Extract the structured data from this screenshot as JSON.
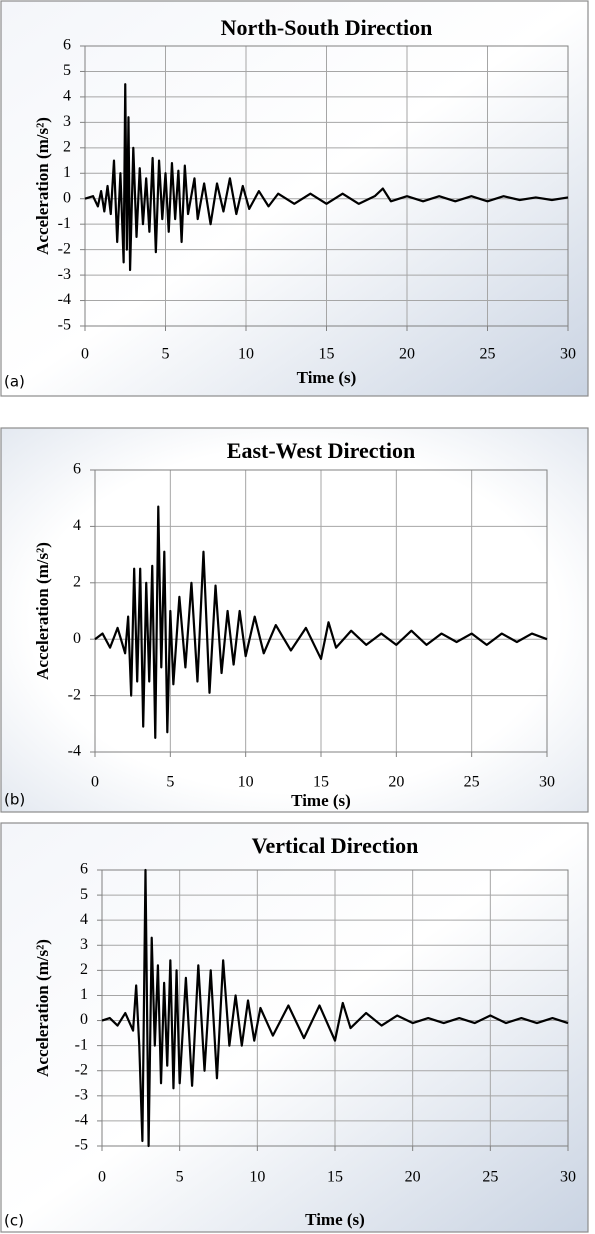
{
  "chart_data": [
    {
      "type": "line",
      "title": "North-South Direction",
      "panel_label": "(a)",
      "xlabel": "Time (s)",
      "ylabel": "Acceleration (m/s²)",
      "color": "#000000",
      "grid": true,
      "xlim": [
        0,
        30
      ],
      "xticks": [
        0,
        5,
        10,
        15,
        20,
        25,
        30
      ],
      "ylim": [
        -5,
        6
      ],
      "yticks": [
        -5,
        -4,
        -3,
        -2,
        -1,
        0,
        1,
        2,
        3,
        4,
        5,
        6
      ],
      "x": [
        0,
        0.5,
        0.8,
        1.0,
        1.2,
        1.4,
        1.6,
        1.8,
        2.0,
        2.2,
        2.4,
        2.5,
        2.6,
        2.7,
        2.8,
        3.0,
        3.2,
        3.4,
        3.6,
        3.8,
        4.0,
        4.2,
        4.4,
        4.6,
        4.8,
        5.0,
        5.2,
        5.4,
        5.6,
        5.8,
        6.0,
        6.2,
        6.4,
        6.8,
        7.0,
        7.4,
        7.8,
        8.2,
        8.6,
        9.0,
        9.4,
        9.8,
        10.2,
        10.8,
        11.4,
        12,
        13,
        14,
        15,
        16,
        17,
        18,
        18.5,
        19,
        20,
        21,
        22,
        23,
        24,
        25,
        26,
        27,
        28,
        29,
        30
      ],
      "values": [
        0,
        0.1,
        -0.3,
        0.3,
        -0.5,
        0.5,
        -0.6,
        1.5,
        -1.7,
        1.0,
        -2.5,
        4.5,
        -2.0,
        3.2,
        -2.8,
        2.0,
        -1.5,
        1.2,
        -1.0,
        0.8,
        -1.3,
        1.6,
        -2.1,
        1.5,
        -0.8,
        1.0,
        -1.3,
        1.4,
        -0.8,
        1.1,
        -1.7,
        1.3,
        -0.6,
        0.8,
        -0.8,
        0.6,
        -1.0,
        0.6,
        -0.5,
        0.8,
        -0.6,
        0.5,
        -0.4,
        0.3,
        -0.3,
        0.2,
        -0.2,
        0.2,
        -0.2,
        0.2,
        -0.2,
        0.1,
        0.4,
        -0.1,
        0.1,
        -0.1,
        0.1,
        -0.1,
        0.1,
        -0.1,
        0.1,
        -0.05,
        0.05,
        -0.05,
        0.05
      ]
    },
    {
      "type": "line",
      "title": "East-West Direction",
      "panel_label": "(b)",
      "xlabel": "Time (s)",
      "ylabel": "Acceleration (m/s²)",
      "color": "#000000",
      "grid": true,
      "xlim": [
        0,
        30
      ],
      "xticks": [
        0,
        5,
        10,
        15,
        20,
        25,
        30
      ],
      "ylim": [
        -4,
        6
      ],
      "yticks": [
        -4,
        -2,
        0,
        2,
        4,
        6
      ],
      "x": [
        0,
        0.5,
        1,
        1.5,
        2,
        2.2,
        2.4,
        2.6,
        2.8,
        3.0,
        3.2,
        3.4,
        3.6,
        3.8,
        4.0,
        4.2,
        4.4,
        4.6,
        4.8,
        5.0,
        5.2,
        5.6,
        6.0,
        6.4,
        6.8,
        7.2,
        7.6,
        8.0,
        8.4,
        8.8,
        9.2,
        9.6,
        10,
        10.6,
        11.2,
        12,
        13,
        14,
        15,
        15.5,
        16,
        17,
        18,
        19,
        20,
        21,
        22,
        23,
        24,
        25,
        26,
        27,
        28,
        29,
        30
      ],
      "values": [
        0,
        0.2,
        -0.3,
        0.4,
        -0.5,
        0.8,
        -2.0,
        2.5,
        -1.5,
        2.5,
        -3.1,
        2.0,
        -1.5,
        2.6,
        -3.5,
        4.7,
        -1.0,
        3.1,
        -3.3,
        1.0,
        -1.6,
        1.5,
        -1.0,
        2.0,
        -1.5,
        3.1,
        -1.9,
        1.9,
        -1.2,
        1.0,
        -0.9,
        1.0,
        -0.6,
        0.8,
        -0.5,
        0.5,
        -0.4,
        0.4,
        -0.7,
        0.6,
        -0.3,
        0.3,
        -0.2,
        0.2,
        -0.2,
        0.3,
        -0.2,
        0.2,
        -0.1,
        0.2,
        -0.2,
        0.2,
        -0.1,
        0.2,
        0
      ]
    },
    {
      "type": "line",
      "title": "Vertical Direction",
      "panel_label": "(c)",
      "xlabel": "Time (s)",
      "ylabel": "Acceleration (m/s²)",
      "color": "#000000",
      "grid": true,
      "xlim": [
        0,
        30
      ],
      "xticks": [
        0,
        5,
        10,
        15,
        20,
        25,
        30
      ],
      "ylim": [
        -5,
        6
      ],
      "yticks": [
        -5,
        -4,
        -3,
        -2,
        -1,
        0,
        1,
        2,
        3,
        4,
        5,
        6
      ],
      "x": [
        0,
        0.5,
        1,
        1.5,
        2,
        2.2,
        2.4,
        2.6,
        2.8,
        3.0,
        3.2,
        3.4,
        3.6,
        3.8,
        4.0,
        4.2,
        4.4,
        4.6,
        4.8,
        5.0,
        5.4,
        5.8,
        6.2,
        6.6,
        7.0,
        7.4,
        7.8,
        8.2,
        8.6,
        9.0,
        9.4,
        9.8,
        10.2,
        11,
        12,
        13,
        14,
        15,
        15.5,
        16,
        17,
        18,
        19,
        20,
        21,
        22,
        23,
        24,
        25,
        26,
        27,
        28,
        29,
        30
      ],
      "values": [
        0,
        0.1,
        -0.2,
        0.3,
        -0.4,
        1.4,
        -1.0,
        -4.8,
        6.0,
        -5.0,
        3.3,
        -1.0,
        2.2,
        -2.5,
        1.5,
        -1.8,
        2.4,
        -2.7,
        2.0,
        -2.5,
        1.7,
        -2.6,
        2.2,
        -2.0,
        2.0,
        -2.3,
        2.4,
        -1.0,
        1.0,
        -1.0,
        0.8,
        -0.8,
        0.5,
        -0.6,
        0.6,
        -0.7,
        0.6,
        -0.8,
        0.7,
        -0.3,
        0.3,
        -0.2,
        0.2,
        -0.1,
        0.1,
        -0.1,
        0.1,
        -0.1,
        0.2,
        -0.1,
        0.1,
        -0.1,
        0.1,
        -0.1
      ]
    }
  ]
}
